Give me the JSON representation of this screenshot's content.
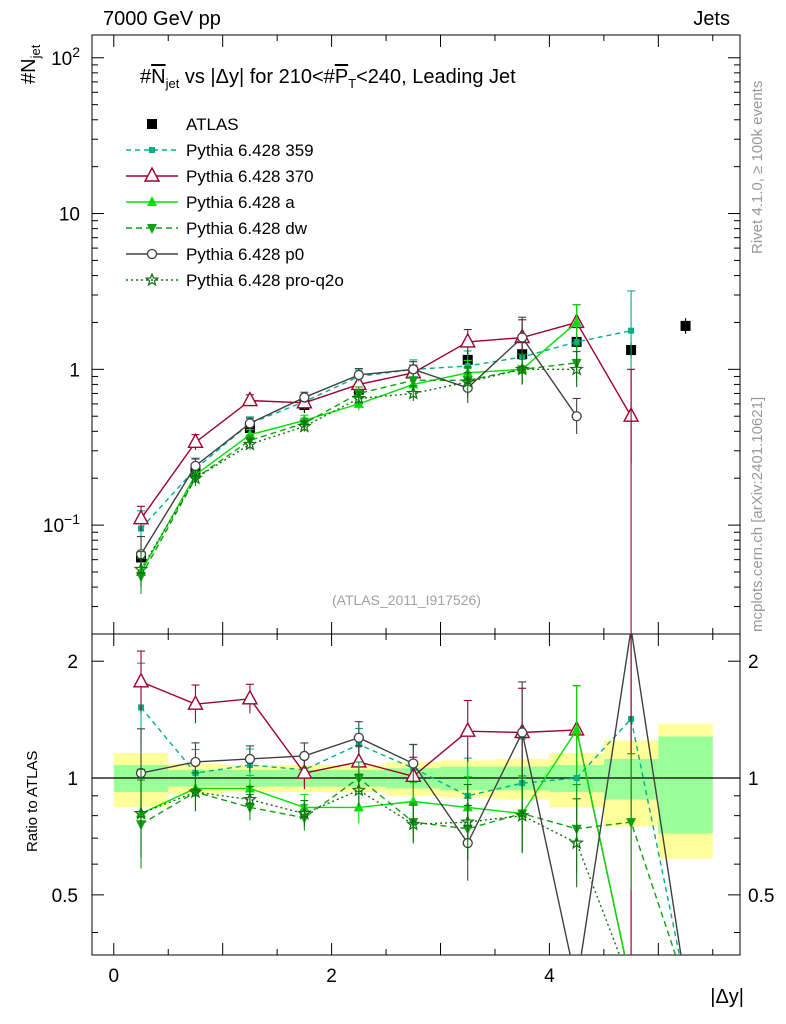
{
  "header": {
    "left_label": "7000 GeV pp",
    "right_label": "Jets",
    "side_label_rivet": "Rivet 4.1.0, ≥ 100k events",
    "side_label_mcplots": "mcplots.cern.ch [arXiv:2401.10621]"
  },
  "chart_data": {
    "type": "line",
    "title": "#N_jet vs |Δy| for 210<#P_T<240, Leading Jet",
    "title_parts": {
      "a": "#",
      "b": "N",
      "b_sub": "jet",
      "c": " vs |Δy| for 210<#",
      "d": "P",
      "d_sub": "T",
      "e": "<240, Leading Jet"
    },
    "ylabel": "#N_jet",
    "ylabel_parts": {
      "main": "#N",
      "sub": "jet"
    },
    "xlabel": "|Δy|",
    "ratio_ylabel": "Ratio to ATLAS",
    "watermark": "(ATLAS_2011_I917526)",
    "xlim": [
      -0.2,
      5.75
    ],
    "ylim": [
      0.02,
      140
    ],
    "yscale": "log",
    "ratio_ylim": [
      0.35,
      2.35
    ],
    "x_ticks": [
      "0",
      "2",
      "4"
    ],
    "y_ticks": [
      {
        "base": "10",
        "exp": "−1"
      },
      {
        "text": "1"
      },
      {
        "text": "10"
      },
      {
        "base": "10",
        "exp": "2"
      }
    ],
    "ratio_ticks": [
      "0.5",
      "1",
      "2"
    ],
    "x": [
      0.25,
      0.75,
      1.25,
      1.75,
      2.25,
      2.75,
      3.25,
      3.75,
      4.25,
      4.75,
      5.25
    ],
    "data": {
      "name": "ATLAS",
      "values": [
        0.062,
        0.22,
        0.42,
        0.59,
        0.74,
        0.94,
        1.15,
        1.25,
        1.5,
        1.33,
        1.9
      ],
      "band_inner": [
        0.08,
        0.05,
        0.05,
        0.05,
        0.05,
        0.06,
        0.07,
        0.07,
        0.08,
        0.12,
        0.28
      ],
      "band_outer": [
        0.16,
        0.09,
        0.08,
        0.08,
        0.08,
        0.1,
        0.11,
        0.12,
        0.16,
        0.25,
        0.38
      ]
    },
    "series": [
      {
        "name": "Pythia 6.428 359",
        "color": "#00b08a",
        "dash": "5,4",
        "marker": "square",
        "values": [
          0.095,
          0.23,
          0.45,
          0.62,
          0.9,
          1.0,
          1.05,
          1.2,
          1.5,
          1.77,
          null
        ],
        "ratio": [
          1.52,
          1.03,
          1.08,
          1.05,
          1.22,
          1.06,
          0.9,
          0.97,
          1.0,
          1.42,
          null
        ],
        "err": [
          0.3,
          0.15,
          0.1,
          0.1,
          0.1,
          0.15,
          0.25,
          0.3,
          0.3,
          0.8,
          null
        ]
      },
      {
        "name": "Pythia 6.428 370",
        "color": "#9e0030",
        "dash": "",
        "marker": "triangle-open",
        "values": [
          0.11,
          0.34,
          0.63,
          0.61,
          0.8,
          0.95,
          1.5,
          1.6,
          2.0,
          0.5,
          null
        ],
        "ratio": [
          1.77,
          1.55,
          1.6,
          1.03,
          1.1,
          1.01,
          1.32,
          1.31,
          1.33,
          null,
          null
        ],
        "err": [
          0.2,
          0.12,
          0.09,
          0.1,
          0.1,
          0.12,
          0.2,
          0.3,
          0.3,
          1.0,
          null
        ]
      },
      {
        "name": "Pythia 6.428 a",
        "color": "#00e000",
        "dash": "",
        "marker": "triangle-up",
        "values": [
          0.05,
          0.21,
          0.38,
          0.47,
          0.6,
          0.8,
          0.95,
          1.0,
          2.0,
          null,
          null
        ],
        "ratio": [
          0.81,
          0.94,
          0.94,
          0.84,
          0.84,
          0.87,
          0.84,
          0.81,
          1.33,
          null,
          null
        ],
        "err": [
          0.25,
          0.1,
          0.08,
          0.08,
          0.1,
          0.12,
          0.2,
          0.25,
          0.3,
          null,
          null
        ]
      },
      {
        "name": "Pythia 6.428 dw",
        "color": "#10a010",
        "dash": "6,4",
        "marker": "triangle-down",
        "values": [
          0.047,
          0.2,
          0.35,
          0.45,
          0.7,
          0.85,
          0.85,
          1.0,
          1.1,
          null,
          null
        ],
        "ratio": [
          0.76,
          0.92,
          0.84,
          0.79,
          1.0,
          0.77,
          0.74,
          0.81,
          0.74,
          0.77,
          null
        ],
        "err": [
          0.3,
          0.12,
          0.08,
          0.08,
          0.1,
          0.12,
          0.2,
          0.25,
          0.3,
          0.5,
          null
        ]
      },
      {
        "name": "Pythia 6.428 p0",
        "color": "#404040",
        "dash": "",
        "marker": "circle-open",
        "values": [
          0.065,
          0.24,
          0.45,
          0.66,
          0.92,
          1.0,
          0.76,
          1.6,
          0.5,
          null,
          null
        ],
        "ratio": [
          1.03,
          1.1,
          1.12,
          1.14,
          1.27,
          1.09,
          0.68,
          1.31,
          null,
          null,
          null
        ],
        "err": [
          0.3,
          0.12,
          0.08,
          0.08,
          0.1,
          0.12,
          0.25,
          0.35,
          0.3,
          null,
          null
        ]
      },
      {
        "name": "Pythia 6.428 pro-q2o",
        "color": "#107010",
        "dash": "2,3",
        "marker": "star",
        "values": [
          0.052,
          0.2,
          0.33,
          0.43,
          0.65,
          0.7,
          0.83,
          1.0,
          1.0,
          null,
          null
        ],
        "ratio": [
          0.81,
          0.92,
          0.88,
          0.81,
          0.93,
          0.76,
          0.77,
          0.8,
          0.68,
          null,
          null
        ],
        "err": [
          0.3,
          0.12,
          0.08,
          0.08,
          0.1,
          0.12,
          0.25,
          0.25,
          0.3,
          null,
          null
        ]
      }
    ]
  }
}
